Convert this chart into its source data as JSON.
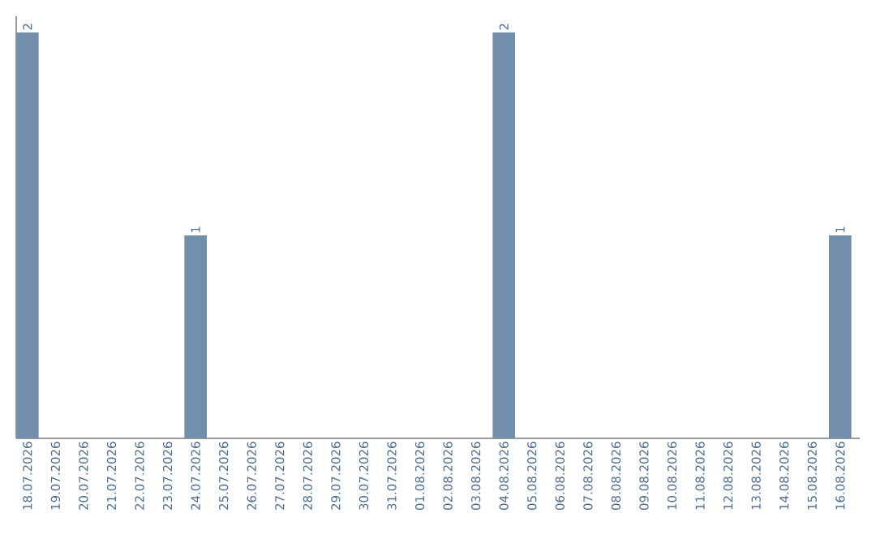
{
  "chart_data": {
    "type": "bar",
    "categories": [
      "18.07.2026",
      "19.07.2026",
      "20.07.2026",
      "21.07.2026",
      "22.07.2026",
      "23.07.2026",
      "24.07.2026",
      "25.07.2026",
      "26.07.2026",
      "27.07.2026",
      "28.07.2026",
      "29.07.2026",
      "30.07.2026",
      "31.07.2026",
      "01.08.2026",
      "02.08.2026",
      "03.08.2026",
      "04.08.2026",
      "05.08.2026",
      "06.08.2026",
      "07.08.2026",
      "08.08.2026",
      "09.08.2026",
      "10.08.2026",
      "11.08.2026",
      "12.08.2026",
      "13.08.2026",
      "14.08.2026",
      "15.08.2026",
      "16.08.2026"
    ],
    "values": [
      2,
      0,
      0,
      0,
      0,
      0,
      1,
      0,
      0,
      0,
      0,
      0,
      0,
      0,
      0,
      0,
      0,
      2,
      0,
      0,
      0,
      0,
      0,
      0,
      0,
      0,
      0,
      0,
      0,
      1
    ],
    "value_labels": [
      "2",
      null,
      null,
      null,
      null,
      null,
      "1",
      null,
      null,
      null,
      null,
      null,
      null,
      null,
      null,
      null,
      null,
      "2",
      null,
      null,
      null,
      null,
      null,
      null,
      null,
      null,
      null,
      null,
      null,
      "1"
    ],
    "color": "#6f8fab",
    "tick_labels": "x",
    "grid": false
  }
}
